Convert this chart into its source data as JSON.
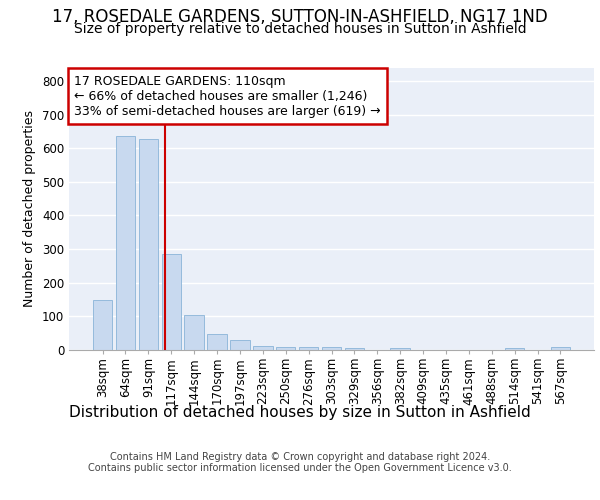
{
  "title1": "17, ROSEDALE GARDENS, SUTTON-IN-ASHFIELD, NG17 1ND",
  "title2": "Size of property relative to detached houses in Sutton in Ashfield",
  "xlabel": "Distribution of detached houses by size in Sutton in Ashfield",
  "ylabel": "Number of detached properties",
  "footer": "Contains HM Land Registry data © Crown copyright and database right 2024.\nContains public sector information licensed under the Open Government Licence v3.0.",
  "categories": [
    "38sqm",
    "64sqm",
    "91sqm",
    "117sqm",
    "144sqm",
    "170sqm",
    "197sqm",
    "223sqm",
    "250sqm",
    "276sqm",
    "303sqm",
    "329sqm",
    "356sqm",
    "382sqm",
    "409sqm",
    "435sqm",
    "461sqm",
    "488sqm",
    "514sqm",
    "541sqm",
    "567sqm"
  ],
  "values": [
    150,
    635,
    628,
    285,
    103,
    47,
    30,
    12,
    8,
    8,
    8,
    5,
    0,
    5,
    0,
    0,
    0,
    0,
    5,
    0,
    8
  ],
  "bar_color": "#c8d9ef",
  "bar_edge_color": "#8ab4d8",
  "vline_x": 2.72,
  "vline_color": "#cc0000",
  "annotation_text": "17 ROSEDALE GARDENS: 110sqm\n← 66% of detached houses are smaller (1,246)\n33% of semi-detached houses are larger (619) →",
  "annotation_box_facecolor": "#ffffff",
  "annotation_box_edgecolor": "#cc0000",
  "bg_color": "#eaeff8",
  "ylim": [
    0,
    840
  ],
  "yticks": [
    0,
    100,
    200,
    300,
    400,
    500,
    600,
    700,
    800
  ],
  "grid_color": "#ffffff",
  "title1_fontsize": 12,
  "title2_fontsize": 10,
  "xlabel_fontsize": 11,
  "ylabel_fontsize": 9,
  "tick_fontsize": 8.5,
  "annotation_fontsize": 9,
  "footer_fontsize": 7
}
